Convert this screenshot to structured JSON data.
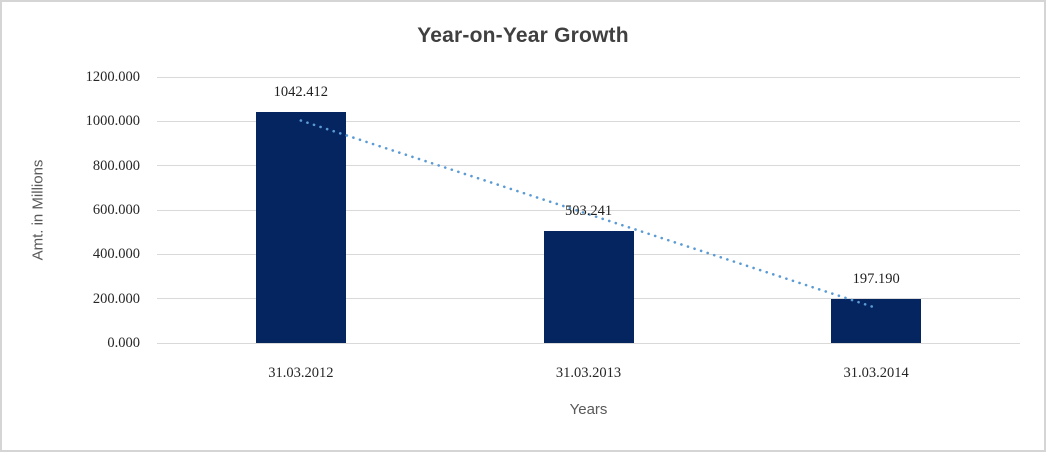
{
  "chart_data": {
    "type": "bar",
    "title": "Year-on-Year Growth",
    "xlabel": "Years",
    "ylabel": "Amt. in Millions",
    "categories": [
      "31.03.2012",
      "31.03.2013",
      "31.03.2014"
    ],
    "values": [
      1042.412,
      503.241,
      197.19
    ],
    "value_labels": [
      "1042.412",
      "503.241",
      "197.190"
    ],
    "ylim": [
      0,
      1200
    ],
    "ytick_interval": 200,
    "ytick_labels": [
      "0.000",
      "200.000",
      "400.000",
      "600.000",
      "800.000",
      "1000.000",
      "1200.000"
    ],
    "grid": true,
    "legend": "none",
    "trendline": {
      "type": "linear",
      "style": "dotted",
      "start_value": 1003.6,
      "end_value": 158.3
    }
  },
  "colors": {
    "bar": "#052561",
    "trendline": "#5b9bd5",
    "gridline": "#d9d9d9",
    "title_text": "#404040",
    "tick_text": "#262626",
    "axis_title_text": "#595959",
    "frame_border": "#d5d5d5"
  }
}
